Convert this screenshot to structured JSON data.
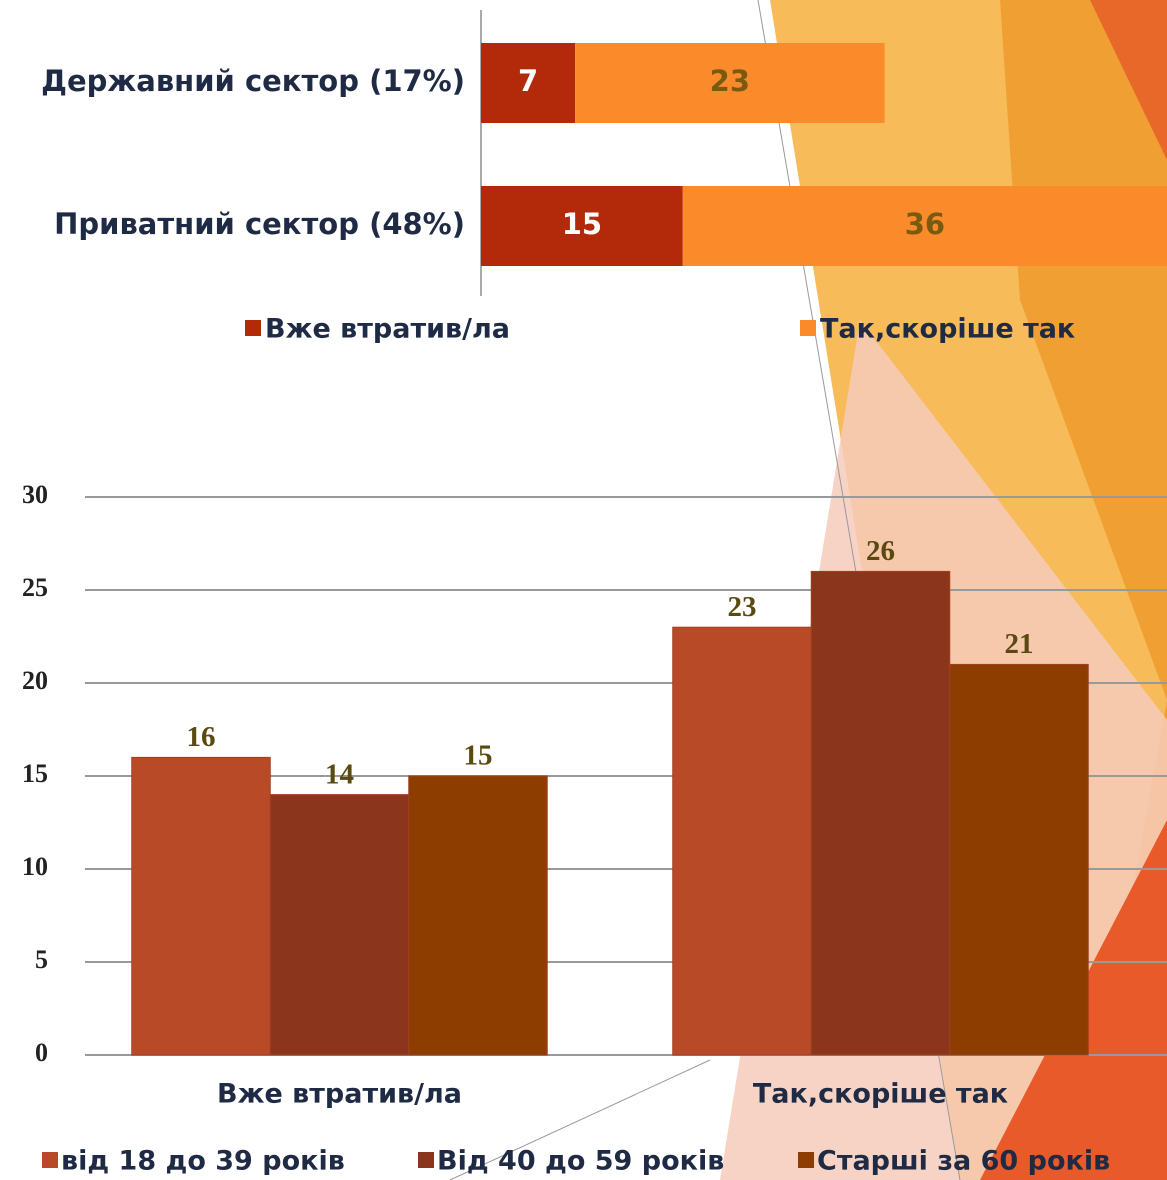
{
  "chart_data": [
    {
      "type": "hbar-stacked",
      "categories": [
        "Державний сектор (17%)",
        "Приватний сектор (48%)"
      ],
      "series": [
        {
          "name": "Вже втратив/ла",
          "color": "#b22a0a",
          "values": [
            7,
            15
          ]
        },
        {
          "name": "Так,скоріше так",
          "color": "#fb8a2b",
          "values": [
            23,
            36
          ]
        }
      ]
    },
    {
      "type": "bar",
      "categories": [
        "Вже втратив/ла",
        "Так,скоріше так"
      ],
      "series": [
        {
          "name": "від 18 до 39 років",
          "color": "#b84a28",
          "values": [
            16,
            23
          ]
        },
        {
          "name": "Від 40 до 59 років",
          "color": "#8b361c",
          "values": [
            14,
            26
          ]
        },
        {
          "name": "Старші за 60 років",
          "color": "#8e3d00",
          "values": [
            15,
            21
          ]
        }
      ],
      "ylim": [
        0,
        30
      ],
      "yticks": [
        0,
        5,
        10,
        15,
        20,
        25,
        30
      ],
      "grid": true
    }
  ]
}
